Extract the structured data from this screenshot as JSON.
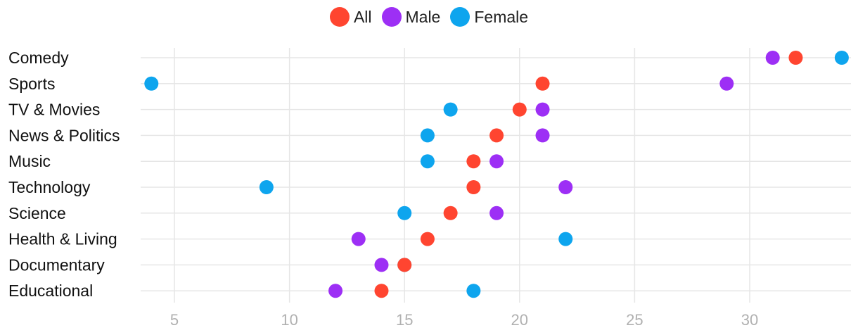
{
  "chart_data": {
    "type": "scatter",
    "title": "",
    "xlabel": "",
    "ylabel": "",
    "xlim": [
      3.6,
      34.5
    ],
    "xticks": [
      5,
      10,
      15,
      20,
      25,
      30
    ],
    "grid": true,
    "legend_position": "top-center",
    "categories": [
      "Comedy",
      "Sports",
      "TV & Movies",
      "News & Politics",
      "Music",
      "Technology",
      "Science",
      "Health & Living",
      "Documentary",
      "Educational"
    ],
    "series": [
      {
        "name": "All",
        "color": "#ff4530",
        "values": [
          32,
          21,
          20,
          19,
          18,
          18,
          17,
          16,
          15,
          14
        ]
      },
      {
        "name": "Male",
        "color": "#9d2ff5",
        "values": [
          31,
          29,
          21,
          21,
          19,
          22,
          19,
          13,
          14,
          12
        ]
      },
      {
        "name": "Female",
        "color": "#0ea5ee",
        "values": [
          34,
          4,
          17,
          16,
          16,
          9,
          15,
          22,
          15,
          18
        ]
      }
    ]
  }
}
